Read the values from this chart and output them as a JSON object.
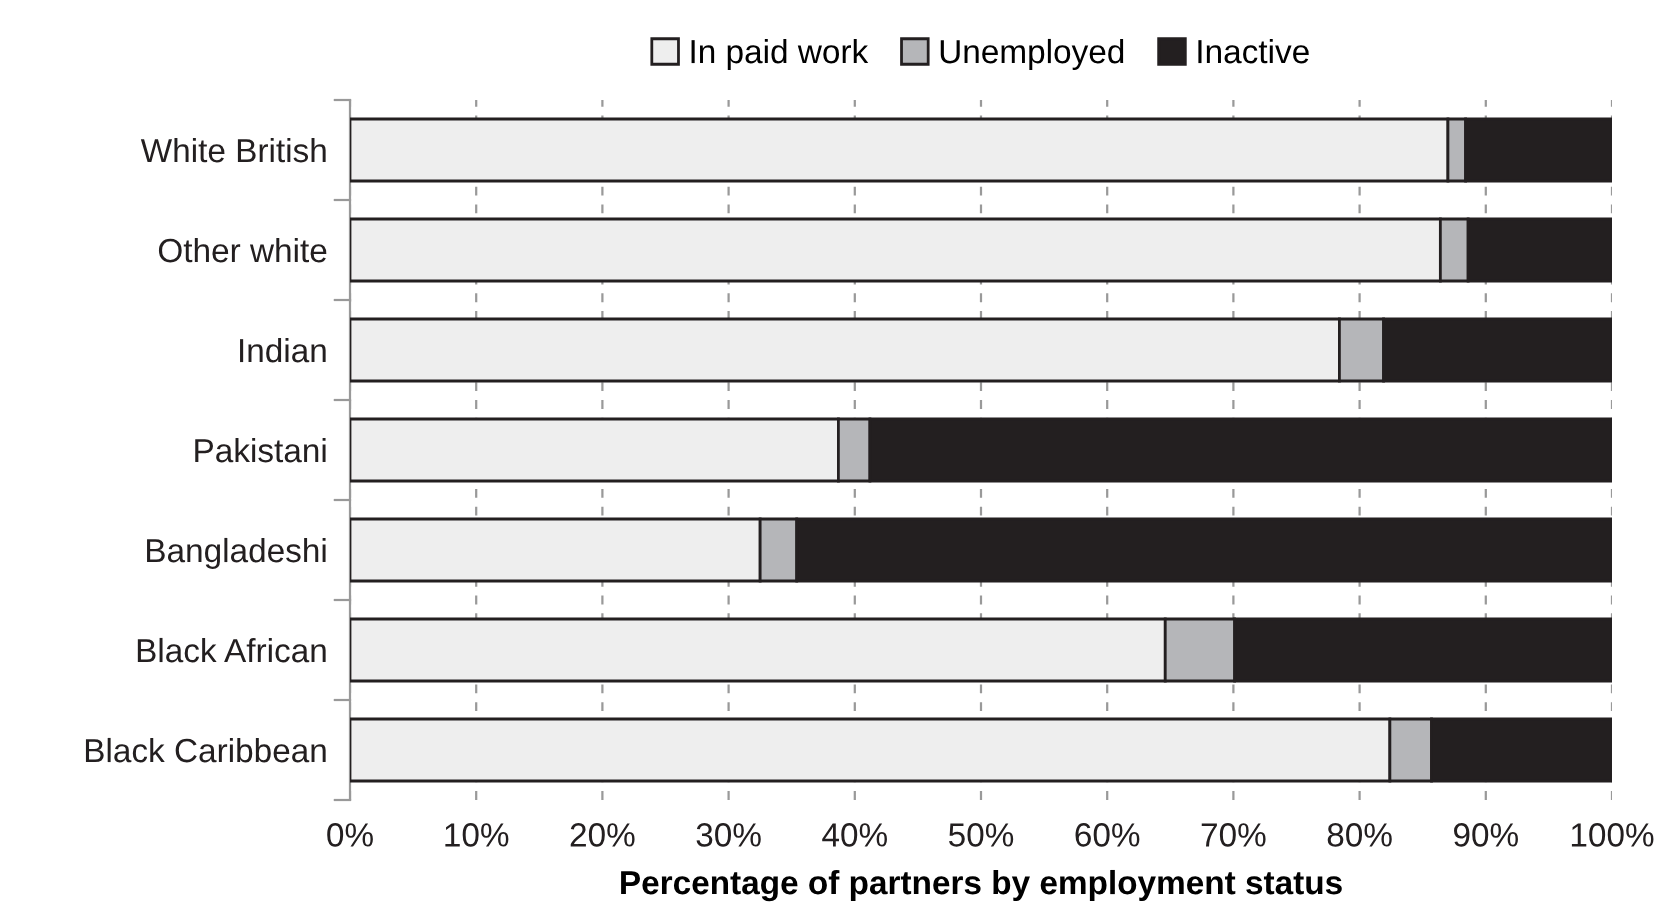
{
  "chart_data": {
    "type": "bar",
    "orientation": "horizontal",
    "stacked": true,
    "categories": [
      "White British",
      "Other white",
      "Indian",
      "Pakistani",
      "Bangladeshi",
      "Black African",
      "Black Caribbean"
    ],
    "series": [
      {
        "name": "In paid work",
        "color": "#eeeeee",
        "values": [
          87.0,
          86.4,
          78.4,
          38.7,
          32.5,
          64.6,
          82.4
        ]
      },
      {
        "name": "Unemployed",
        "color": "#b5b6b9",
        "values": [
          1.4,
          2.2,
          3.5,
          2.5,
          2.9,
          5.5,
          3.3
        ]
      },
      {
        "name": "Inactive",
        "color": "#231f20",
        "values": [
          11.6,
          11.4,
          18.1,
          58.8,
          64.6,
          29.9,
          14.3
        ]
      }
    ],
    "xlim": [
      0,
      100
    ],
    "xticks": [
      {
        "value": 0,
        "label": "0%"
      },
      {
        "value": 10,
        "label": "10%"
      },
      {
        "value": 20,
        "label": "20%"
      },
      {
        "value": 30,
        "label": "30%"
      },
      {
        "value": 40,
        "label": "40%"
      },
      {
        "value": 50,
        "label": "50%"
      },
      {
        "value": 60,
        "label": "60%"
      },
      {
        "value": 70,
        "label": "70%"
      },
      {
        "value": 80,
        "label": "80%"
      },
      {
        "value": 90,
        "label": "90%"
      },
      {
        "value": 100,
        "label": "100%"
      }
    ],
    "xlabel": "Percentage of partners by employment status",
    "grid": "x",
    "legend": "top"
  }
}
